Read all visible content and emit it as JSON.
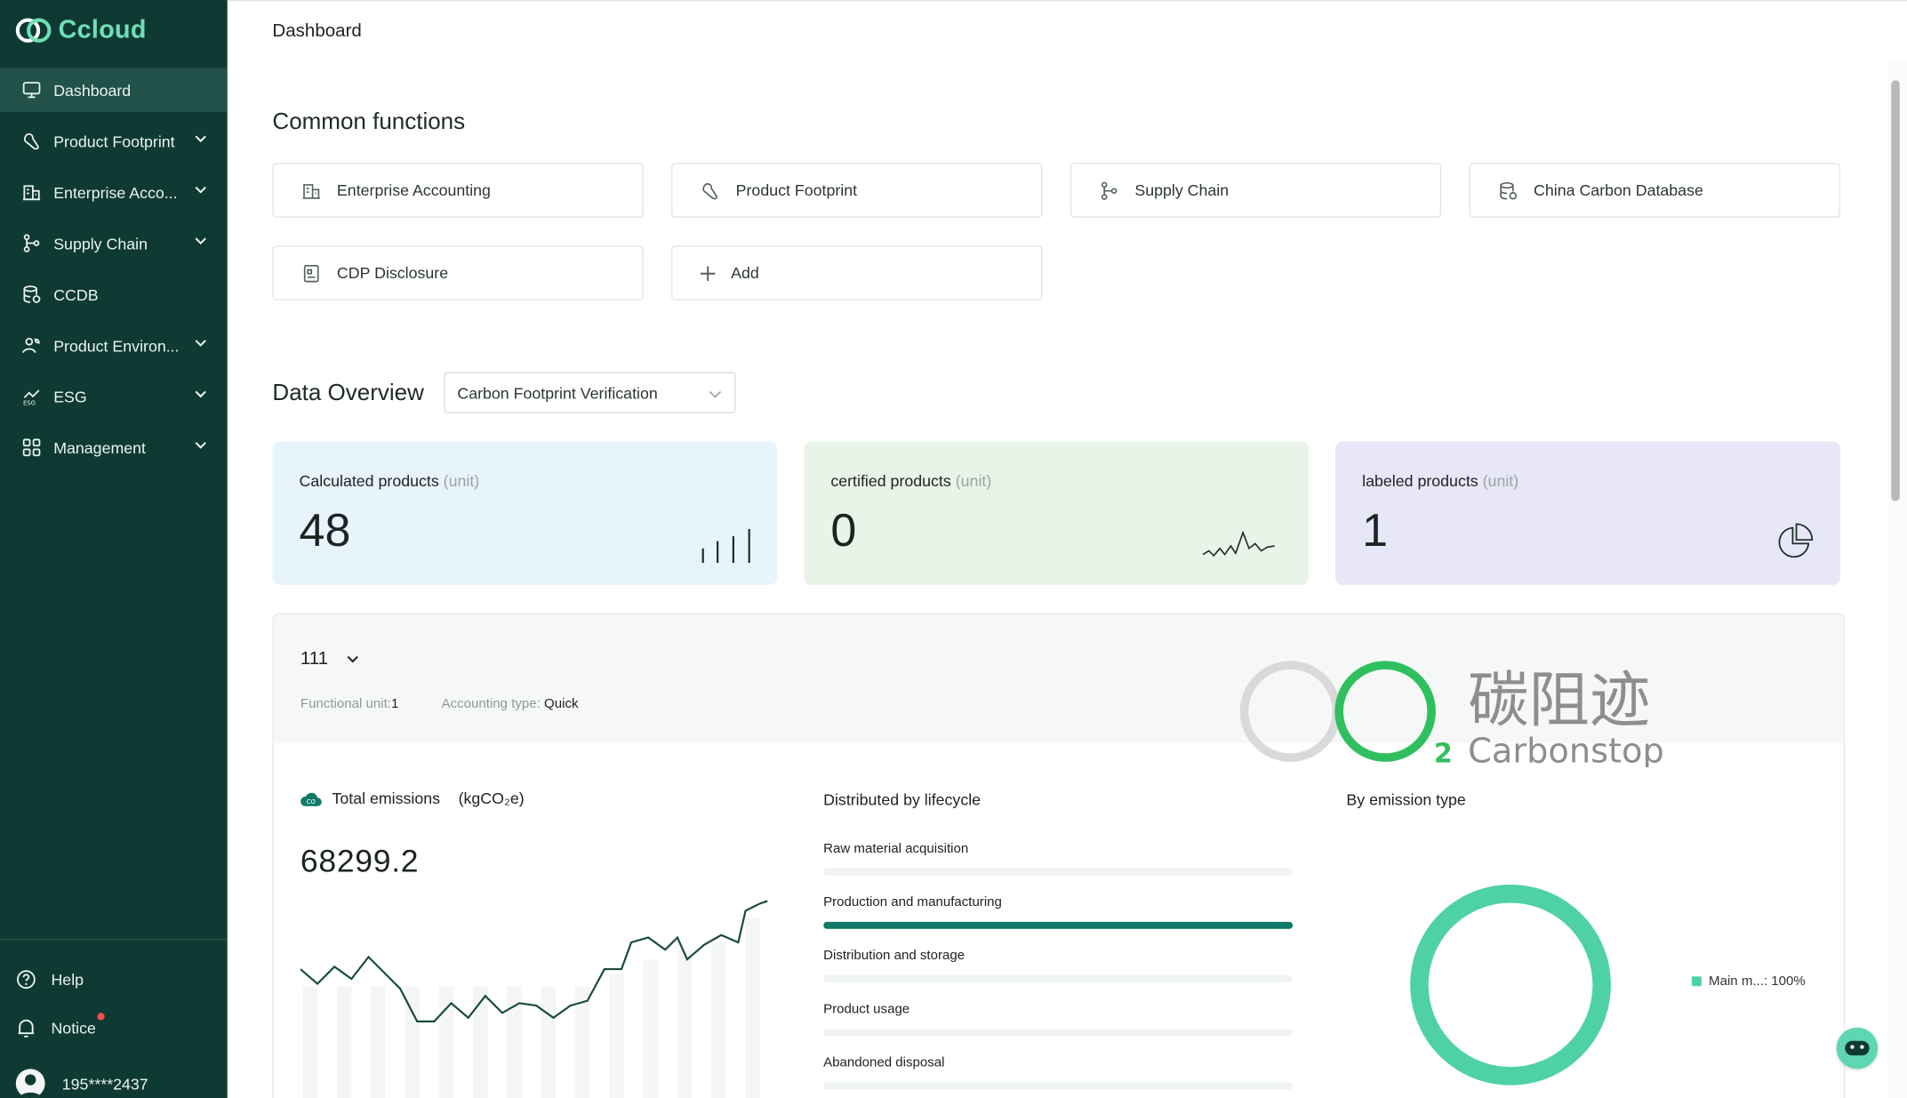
{
  "app": {
    "brand": "Ccloud",
    "page_title": "Dashboard"
  },
  "sidebar": {
    "items": [
      {
        "label": "Dashboard",
        "icon": "monitor-icon",
        "active": true,
        "expandable": false
      },
      {
        "label": "Product Footprint",
        "icon": "footprint-icon",
        "active": false,
        "expandable": true
      },
      {
        "label": "Enterprise Acco...",
        "icon": "building-icon",
        "active": false,
        "expandable": true
      },
      {
        "label": "Supply Chain",
        "icon": "branch-icon",
        "active": false,
        "expandable": true
      },
      {
        "label": "CCDB",
        "icon": "database-icon",
        "active": false,
        "expandable": false
      },
      {
        "label": "Product Environ...",
        "icon": "leaf-person-icon",
        "active": false,
        "expandable": true
      },
      {
        "label": "ESG",
        "icon": "esg-icon",
        "active": false,
        "expandable": true
      },
      {
        "label": "Management",
        "icon": "grid-icon",
        "active": false,
        "expandable": true
      }
    ],
    "help_label": "Help",
    "notice_label": "Notice",
    "user_label": "195****2437"
  },
  "common_functions": {
    "title": "Common functions",
    "items": [
      {
        "label": "Enterprise Accounting",
        "icon": "building-icon"
      },
      {
        "label": "Product Footprint",
        "icon": "footprint-icon"
      },
      {
        "label": "Supply Chain",
        "icon": "branch-icon"
      },
      {
        "label": "China Carbon Database",
        "icon": "database-icon"
      },
      {
        "label": "CDP Disclosure",
        "icon": "document-icon"
      },
      {
        "label": "Add",
        "icon": "plus-icon"
      }
    ]
  },
  "overview": {
    "title": "Data Overview",
    "selected_option": "Carbon Footprint Verification",
    "stats": [
      {
        "label": "Calculated products",
        "unit": "(unit)",
        "value": "48",
        "bg": "#e8f4fc",
        "icon": "bar-chart-icon"
      },
      {
        "label": "certified products",
        "unit": "(unit)",
        "value": "0",
        "bg": "#e9f4e8",
        "icon": "sparkline-icon"
      },
      {
        "label": "labeled products",
        "unit": "(unit)",
        "value": "1",
        "bg": "#e7e7f8",
        "icon": "pie-icon"
      }
    ]
  },
  "project": {
    "name": "111",
    "functional_unit_label": "Functional unit:",
    "functional_unit_value": "1",
    "accounting_type_label": "Accounting type:",
    "accounting_type_value": "Quick",
    "watermark_cn": "碳阻迹",
    "watermark_en": "Carbonstop",
    "watermark_sub": "2",
    "total_emissions_label": "Total emissions",
    "total_emissions_unit": "(kgCO₂e)",
    "total_emissions_value": "68299.2",
    "lifecycle_title": "Distributed by lifecycle",
    "lifecycle": [
      {
        "name": "Raw material acquisition",
        "fraction": 0
      },
      {
        "name": "Production and manufacturing",
        "fraction": 1
      },
      {
        "name": "Distribution and storage",
        "fraction": 0
      },
      {
        "name": "Product usage",
        "fraction": 0
      },
      {
        "name": "Abandoned disposal",
        "fraction": 0
      }
    ],
    "emission_type_title": "By emission type",
    "emission_type_legend": "Main m...: 100%",
    "emission_type_fraction": 1,
    "emission_color": "#4fd1a8"
  },
  "colors": {
    "sidebar_bg": "#0f3a33",
    "brand_accent": "#6fe0b6",
    "primary": "#0f7a68"
  }
}
